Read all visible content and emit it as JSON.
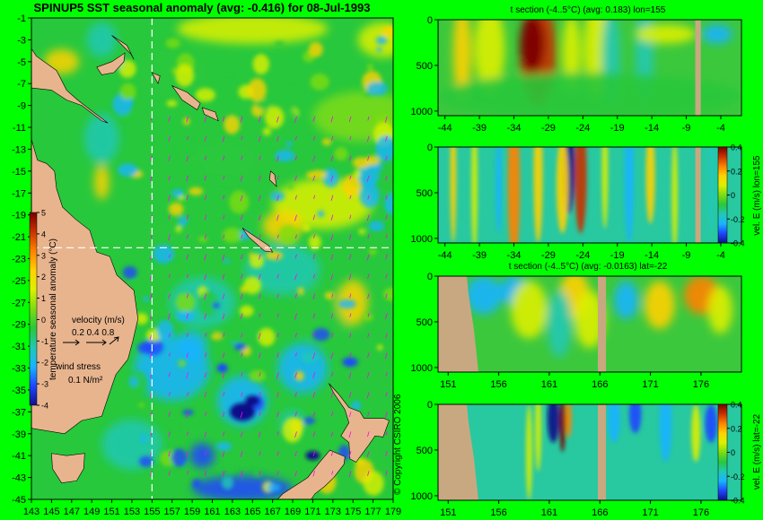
{
  "colors": {
    "background": "#00ff00",
    "land": "#e8b48e",
    "section_land": "#c8a880",
    "wind_arrows": "#ff00ff",
    "crosshair": "#ffffff"
  },
  "colorscale": [
    "#101088",
    "#1e46ff",
    "#19b4ff",
    "#22c8b4",
    "#28c83c",
    "#7ddc14",
    "#dcf000",
    "#ffd200",
    "#ff8200",
    "#c83200",
    "#780000"
  ],
  "chart_data": [
    {
      "type": "heatmap",
      "panel": "map",
      "title": "SPINUP5 SST seasonal anomaly (avg: -0.416) for 08-Jul-1993",
      "x_ticks": [
        "143",
        "145",
        "147",
        "149",
        "151",
        "153",
        "155",
        "157",
        "159",
        "161",
        "163",
        "165",
        "167",
        "169",
        "171",
        "173",
        "175",
        "177",
        "179"
      ],
      "y_ticks": [
        "-1",
        "-3",
        "-5",
        "-7",
        "-9",
        "-11",
        "-13",
        "-15",
        "-17",
        "-19",
        "-21",
        "-23",
        "-25",
        "-27",
        "-29",
        "-31",
        "-33",
        "-35",
        "-37",
        "-39",
        "-41",
        "-43",
        "-45"
      ],
      "xlim": [
        143,
        179
      ],
      "ylim": [
        -45,
        -1
      ],
      "crosshair": {
        "lon": 155,
        "lat": -22
      },
      "colorbar": {
        "label": "temperature seasonal anomaly (°C)",
        "ticks": [
          "5",
          "4",
          "3",
          "2",
          "1",
          "0",
          "-1",
          "-2",
          "-3",
          "-4"
        ],
        "range": [
          -4,
          5
        ]
      },
      "velocity_legend": {
        "label": "velocity (m/s)",
        "values": "0.2 0.4 0.8"
      },
      "wind_legend": {
        "label": "wind stress",
        "value": "0.1 N/m²"
      },
      "copyright": "© Copyright CSIRO 2006"
    },
    {
      "type": "heatmap",
      "panel": "section-1",
      "title": "t section (-4..5°C) (avg: 0.183) lon=155",
      "x_ticks": [
        "-44",
        "-39",
        "-34",
        "-29",
        "-24",
        "-19",
        "-14",
        "-9",
        "-4"
      ],
      "y_ticks": [
        "0",
        "500",
        "1000"
      ],
      "xlim": [
        -45,
        -1
      ],
      "ylim": [
        1050,
        0
      ],
      "land_gaps": [
        [
          -7.7,
          -6.9
        ]
      ]
    },
    {
      "type": "heatmap",
      "panel": "section-2",
      "title": "",
      "x_ticks": [
        "-44",
        "-39",
        "-34",
        "-29",
        "-24",
        "-19",
        "-14",
        "-9",
        "-4"
      ],
      "y_ticks": [
        "0",
        "500",
        "1000"
      ],
      "xlim": [
        -45,
        -1
      ],
      "ylim": [
        1050,
        0
      ],
      "land_gaps": [
        [
          -7.7,
          -6.9
        ]
      ],
      "colorbar": {
        "label": "vel. E (m/s) lon=155",
        "ticks": [
          "0.4",
          "0.2",
          "0",
          "-0.2",
          "-0.4"
        ],
        "range": [
          -0.4,
          0.4
        ]
      }
    },
    {
      "type": "heatmap",
      "panel": "section-3",
      "title": "t section (-4..5°C) (avg: -0.0163) lat=-22",
      "x_ticks": [
        "151",
        "156",
        "161",
        "166",
        "171",
        "176"
      ],
      "y_ticks": [
        "0",
        "500",
        "1000"
      ],
      "xlim": [
        150,
        180
      ],
      "ylim": [
        1050,
        0
      ],
      "land_gaps": [
        [
          165.8,
          166.6
        ]
      ]
    },
    {
      "type": "heatmap",
      "panel": "section-4",
      "title": "",
      "x_ticks": [
        "151",
        "156",
        "161",
        "166",
        "171",
        "176"
      ],
      "y_ticks": [
        "0",
        "500",
        "1000"
      ],
      "xlim": [
        150,
        180
      ],
      "ylim": [
        1050,
        0
      ],
      "land_gaps": [
        [
          165.8,
          166.6
        ]
      ],
      "colorbar": {
        "label": "vel. E (m/s) lat=-22",
        "ticks": [
          "0.4",
          "0.2",
          "0",
          "-0.2",
          "-0.4"
        ],
        "range": [
          -0.4,
          0.4
        ]
      }
    }
  ]
}
